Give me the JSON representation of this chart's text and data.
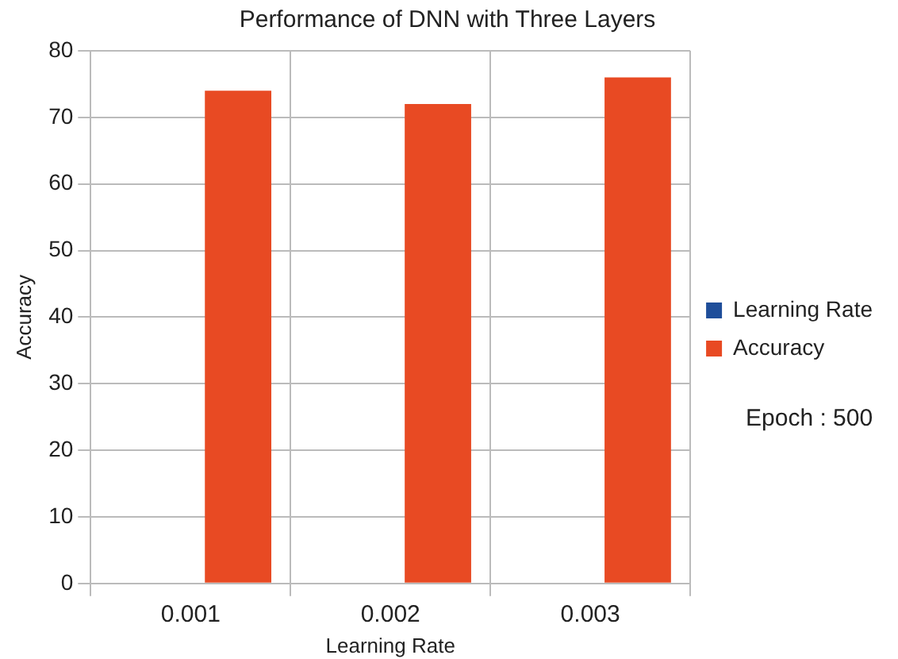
{
  "chart_data": {
    "type": "bar",
    "title": "Performance of DNN with Three Layers",
    "xlabel": "Learning Rate",
    "ylabel": "Accuracy",
    "categories": [
      "0.001",
      "0.002",
      "0.003"
    ],
    "series": [
      {
        "name": "Learning Rate",
        "color": "#1f4e9a",
        "values": [
          null,
          null,
          null
        ]
      },
      {
        "name": "Accuracy",
        "color": "#e84a23",
        "values": [
          74,
          72,
          76
        ]
      }
    ],
    "ylim": [
      0,
      80
    ],
    "yticks": [
      0,
      10,
      20,
      30,
      40,
      50,
      60,
      70,
      80
    ],
    "grid": true,
    "legend": "right",
    "annotations": [
      "Epoch : 500"
    ]
  }
}
